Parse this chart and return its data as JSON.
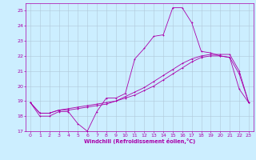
{
  "xlabel": "Windchill (Refroidissement éolien,°C)",
  "background_color": "#cceeff",
  "grid_color": "#b0c8d8",
  "line_color": "#aa00aa",
  "xlim": [
    -0.5,
    23.5
  ],
  "ylim": [
    17,
    25.5
  ],
  "yticks": [
    17,
    18,
    19,
    20,
    21,
    22,
    23,
    24,
    25
  ],
  "xticks": [
    0,
    1,
    2,
    3,
    4,
    5,
    6,
    7,
    8,
    9,
    10,
    11,
    12,
    13,
    14,
    15,
    16,
    17,
    18,
    19,
    20,
    21,
    22,
    23
  ],
  "line1_x": [
    0,
    1,
    2,
    3,
    4,
    5,
    6,
    7,
    8,
    9,
    10,
    11,
    12,
    13,
    14,
    15,
    16,
    17,
    18,
    19,
    20,
    21,
    22,
    23
  ],
  "line1_y": [
    18.9,
    18.0,
    18.0,
    18.3,
    18.3,
    17.5,
    17.0,
    18.3,
    19.2,
    19.2,
    19.5,
    21.8,
    22.5,
    23.3,
    23.4,
    25.2,
    25.2,
    24.2,
    22.3,
    22.2,
    22.0,
    21.9,
    19.8,
    18.9
  ],
  "line2_x": [
    0,
    1,
    2,
    3,
    4,
    5,
    6,
    7,
    8,
    9,
    10,
    11,
    12,
    13,
    14,
    15,
    16,
    17,
    18,
    19,
    20,
    21,
    22,
    23
  ],
  "line2_y": [
    18.9,
    18.2,
    18.2,
    18.4,
    18.4,
    18.5,
    18.6,
    18.7,
    18.8,
    19.0,
    19.3,
    19.6,
    19.9,
    20.3,
    20.7,
    21.1,
    21.5,
    21.8,
    22.0,
    22.1,
    22.1,
    22.1,
    21.0,
    18.9
  ],
  "line3_x": [
    0,
    1,
    2,
    3,
    4,
    5,
    6,
    7,
    8,
    9,
    10,
    11,
    12,
    13,
    14,
    15,
    16,
    17,
    18,
    19,
    20,
    21,
    22,
    23
  ],
  "line3_y": [
    18.9,
    18.2,
    18.2,
    18.4,
    18.5,
    18.6,
    18.7,
    18.8,
    18.9,
    19.0,
    19.2,
    19.4,
    19.7,
    20.0,
    20.4,
    20.8,
    21.2,
    21.6,
    21.9,
    22.0,
    22.0,
    21.9,
    20.8,
    18.9
  ],
  "tick_labelsize": 4.5,
  "xlabel_fontsize": 4.8,
  "linewidth": 0.6,
  "markersize": 2.0
}
